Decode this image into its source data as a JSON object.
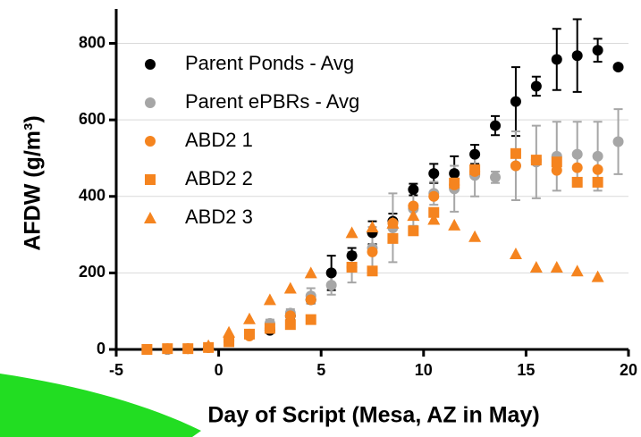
{
  "chart_data": {
    "type": "scatter",
    "xlabel": "Day of Script (Mesa, AZ in May)",
    "ylabel": "AFDW (g/m³)",
    "x": [
      -3.5,
      -2.5,
      -1.5,
      -0.5,
      0.5,
      1.5,
      2.5,
      3.5,
      4.5,
      5.5,
      6.5,
      7.5,
      8.5,
      9.5,
      10.5,
      11.5,
      12.5,
      13.5,
      14.5,
      15.5,
      16.5,
      17.5,
      18.5,
      19.5
    ],
    "xlim": [
      -5,
      20
    ],
    "xticks": [
      -5,
      0,
      5,
      10,
      15,
      20
    ],
    "ylim": [
      0,
      890
    ],
    "yticks": [
      0,
      200,
      400,
      600,
      800
    ],
    "grid": true,
    "legend": "upper left",
    "series": [
      {
        "name": "Parent Ponds - Avg",
        "color": "#000000",
        "marker": "circle",
        "values": [
          0,
          0,
          2,
          5,
          22,
          37,
          50,
          88,
          130,
          200,
          245,
          305,
          335,
          418,
          460,
          460,
          510,
          585,
          648,
          688,
          758,
          768,
          782,
          738
        ],
        "errors": [
          0,
          0,
          0,
          0,
          5,
          5,
          5,
          10,
          10,
          45,
          20,
          30,
          20,
          15,
          25,
          45,
          25,
          25,
          90,
          25,
          80,
          95,
          30,
          0
        ]
      },
      {
        "name": "Parent ePBRs - Avg",
        "color": "#a6a6a6",
        "marker": "circle",
        "values": [
          0,
          0,
          2,
          5,
          25,
          40,
          68,
          95,
          140,
          168,
          215,
          265,
          318,
          368,
          408,
          420,
          455,
          450,
          480,
          490,
          505,
          510,
          505,
          543
        ],
        "errors": [
          0,
          0,
          0,
          0,
          5,
          5,
          10,
          10,
          20,
          25,
          40,
          55,
          90,
          45,
          30,
          60,
          55,
          15,
          90,
          95,
          90,
          85,
          90,
          85
        ]
      },
      {
        "name": "ABD2 1",
        "color": "#f5841f",
        "marker": "circle",
        "values": [
          0,
          2,
          2,
          5,
          22,
          35,
          55,
          88,
          130,
          null,
          215,
          255,
          330,
          375,
          400,
          430,
          465,
          null,
          480,
          495,
          468,
          475,
          470,
          null
        ]
      },
      {
        "name": "ABD2 2",
        "color": "#f5841f",
        "marker": "square",
        "values": [
          0,
          2,
          2,
          5,
          20,
          40,
          55,
          65,
          78,
          null,
          215,
          205,
          290,
          310,
          358,
          435,
          470,
          null,
          512,
          495,
          490,
          437,
          437,
          null
        ]
      },
      {
        "name": "ABD2 3",
        "color": "#f5841f",
        "marker": "triangle",
        "values": [
          null,
          null,
          null,
          10,
          45,
          80,
          130,
          160,
          200,
          null,
          305,
          320,
          330,
          350,
          340,
          325,
          295,
          null,
          250,
          215,
          215,
          205,
          190,
          null
        ]
      }
    ]
  }
}
